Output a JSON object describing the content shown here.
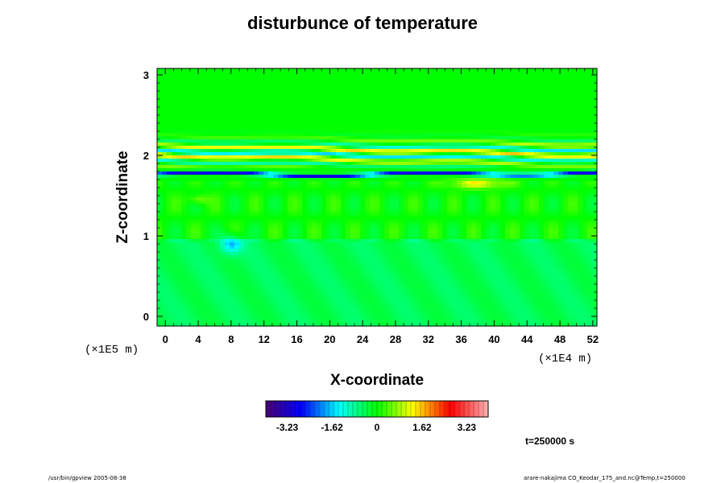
{
  "chart_data": {
    "type": "heatmap",
    "title": "disturbunce of temperature",
    "xlabel": "X-coordinate",
    "ylabel": "Z-coordinate",
    "x_scale_label": "(×1E4 m)",
    "y_scale_label": "(×1E5 m)",
    "xlim": [
      -1,
      52.5
    ],
    "ylim": [
      -0.12,
      3.08
    ],
    "x_ticks": [
      0,
      4,
      8,
      12,
      16,
      20,
      24,
      28,
      32,
      36,
      40,
      44,
      48,
      52
    ],
    "y_ticks": [
      0,
      1,
      2,
      3
    ],
    "x_tick_labels": [
      "0",
      "4",
      "8",
      "12",
      "16",
      "20",
      "24",
      "28",
      "32",
      "36",
      "40",
      "44",
      "48",
      "52"
    ],
    "y_tick_labels": [
      "0",
      "1",
      "2",
      "3"
    ],
    "colorbar": {
      "range": [
        -4.0,
        4.0
      ],
      "tick_values": [
        -3.23,
        -1.62,
        0,
        1.62,
        3.23
      ],
      "tick_labels": [
        "-3.23",
        "-1.62",
        "0",
        "1.62",
        "3.23"
      ]
    },
    "features": [
      {
        "kind": "cold-band",
        "z": 1.77,
        "value": -3.0
      },
      {
        "kind": "wave-bands",
        "z_range": [
          1.82,
          2.25
        ],
        "amplitude": 1.6
      },
      {
        "kind": "cool-lower-layer",
        "z_range": [
          0.0,
          0.95
        ],
        "value": -0.8
      },
      {
        "kind": "warm-patch",
        "x": 38,
        "z": 1.65,
        "value": 1.2
      },
      {
        "kind": "cool-plume",
        "x": 8,
        "z": 0.9,
        "value": -1.3
      }
    ]
  },
  "time_label": "t=250000 s",
  "footer": {
    "left": "/usr/bin/gpview 2005-08-38",
    "right": "arare-nakajima CO_Keodar_175_and.nc@Temp,t=250000"
  }
}
